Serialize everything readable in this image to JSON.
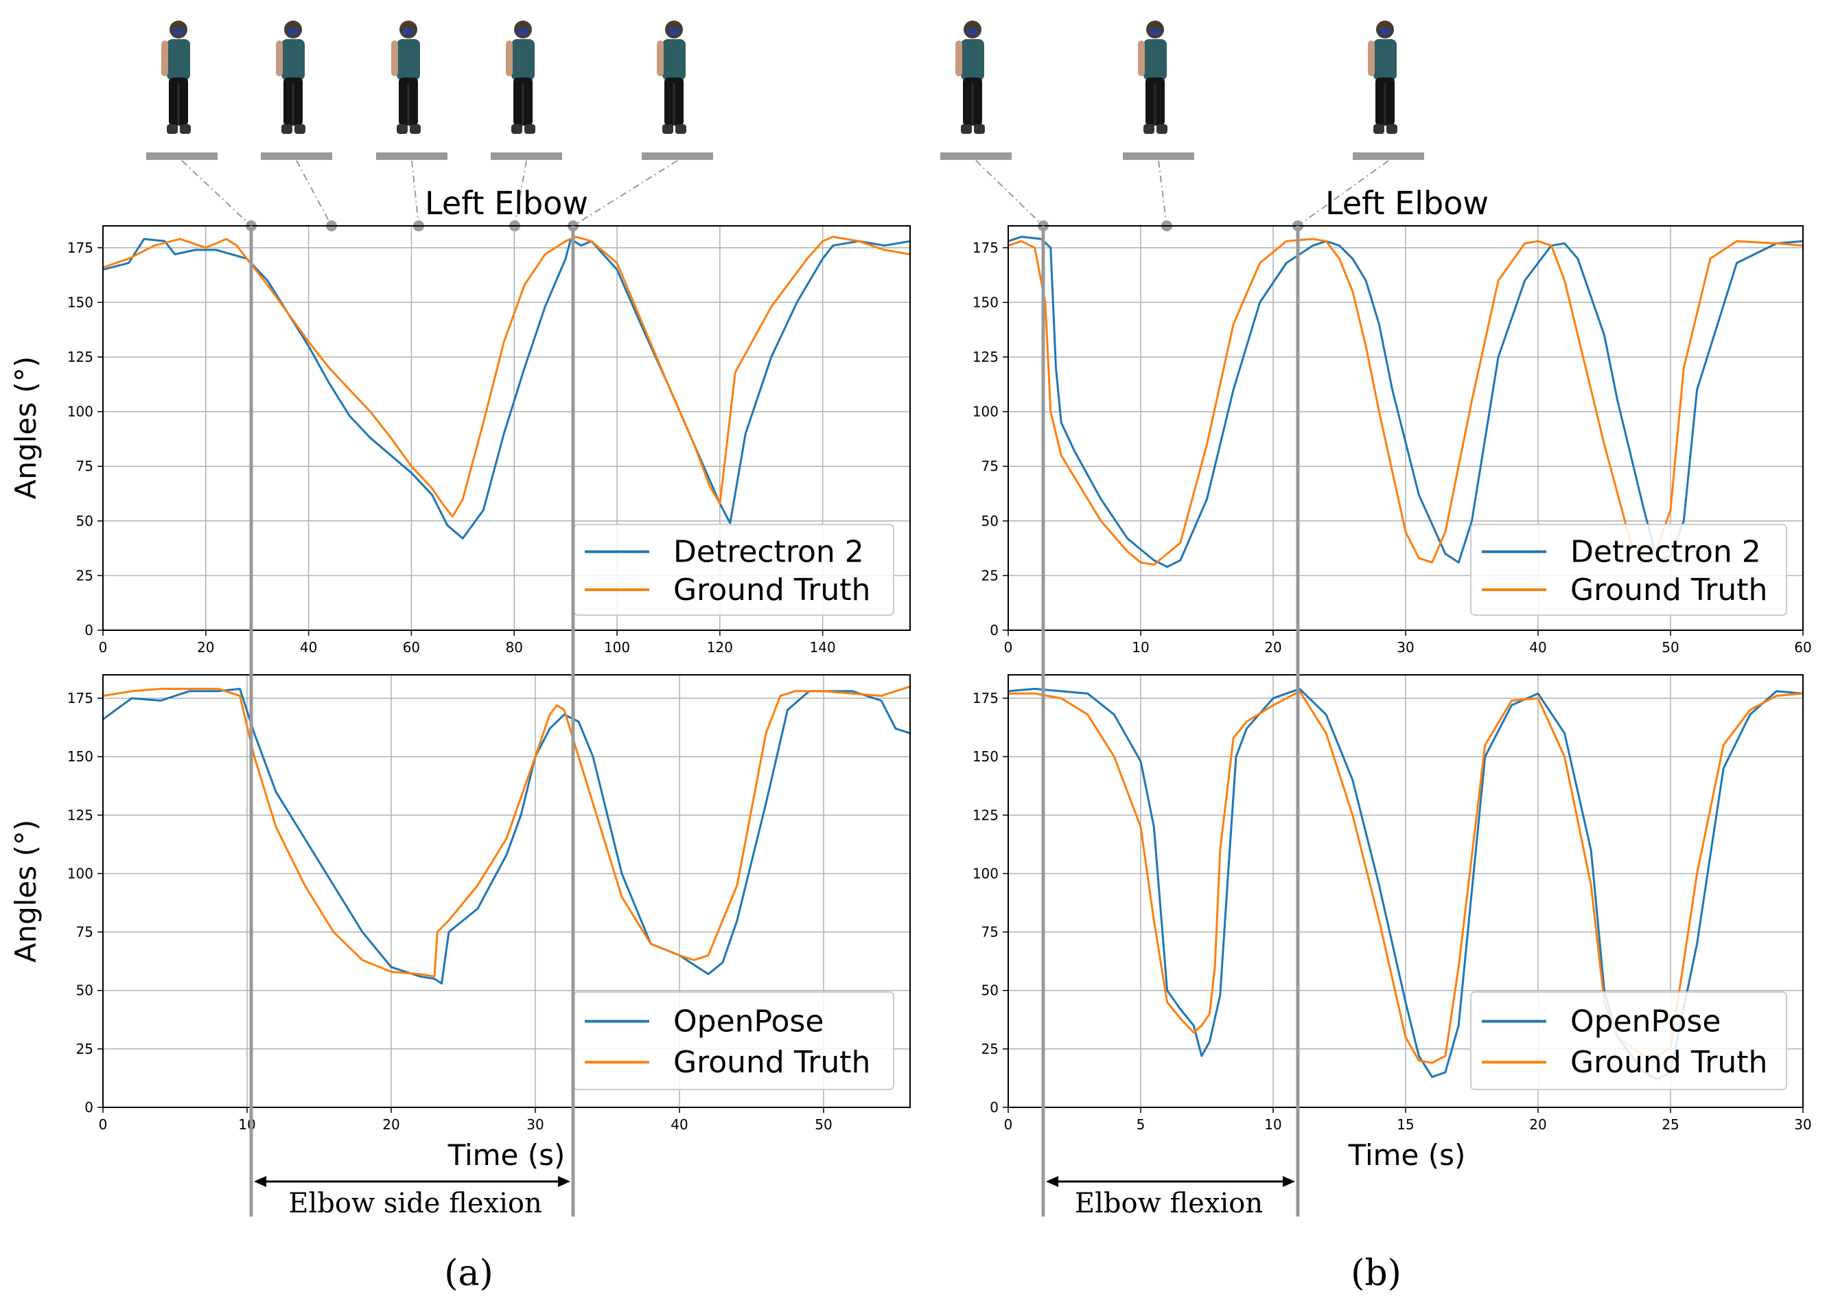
{
  "figure": {
    "left_title": "Left Elbow",
    "right_title": "Left Elbow",
    "left_span_label": "Elbow side flexion",
    "right_span_label": "Elbow flexion",
    "left_xlabel": "Time (s)",
    "right_xlabel": "Time (s)",
    "panel_a": "(a)",
    "panel_b": "(b)",
    "colors": {
      "blue": "#1f77b4",
      "orange": "#ff7f0e",
      "grid": "#b0b0b0",
      "marker": "#999999"
    },
    "icons": [
      "person-pose-icon"
    ]
  },
  "chart_data": [
    {
      "type": "line",
      "title": "Left Elbow",
      "xlabel": "",
      "ylabel": "Angles (°)",
      "xlim": [
        0,
        157
      ],
      "ylim": [
        0,
        185
      ],
      "xticks": [
        0,
        20,
        40,
        60,
        80,
        100,
        120,
        140
      ],
      "yticks": [
        0,
        25,
        50,
        75,
        100,
        125,
        150,
        175
      ],
      "grid": true,
      "legend": "lower-right",
      "series": [
        {
          "name": "Detrectron 2",
          "color": "#1f77b4",
          "x": [
            0,
            5,
            8,
            12,
            14,
            18,
            22,
            28,
            32,
            36,
            40,
            44,
            48,
            52,
            56,
            60,
            64,
            67,
            70,
            74,
            78,
            82,
            86,
            90,
            91,
            93,
            95,
            100,
            105,
            110,
            115,
            120,
            122,
            125,
            130,
            135,
            140,
            142,
            147,
            152,
            157
          ],
          "y": [
            165,
            168,
            179,
            178,
            172,
            174,
            174,
            170,
            160,
            145,
            130,
            113,
            98,
            88,
            80,
            72,
            62,
            48,
            42,
            55,
            90,
            120,
            148,
            170,
            179,
            176,
            178,
            165,
            138,
            112,
            85,
            58,
            49,
            90,
            125,
            150,
            170,
            176,
            178,
            176,
            178
          ]
        },
        {
          "name": "Ground Truth",
          "color": "#ff7f0e",
          "x": [
            0,
            5,
            10,
            15,
            20,
            24,
            26,
            28,
            32,
            36,
            40,
            44,
            48,
            52,
            56,
            60,
            64,
            66,
            68,
            70,
            74,
            78,
            82,
            86,
            90,
            92,
            95,
            100,
            105,
            110,
            115,
            118,
            120,
            123,
            130,
            137,
            140,
            142,
            147,
            152,
            157
          ],
          "y": [
            166,
            170,
            176,
            179,
            175,
            179,
            176,
            170,
            158,
            145,
            132,
            120,
            110,
            100,
            88,
            75,
            65,
            58,
            52,
            60,
            95,
            132,
            158,
            172,
            178,
            180,
            178,
            168,
            140,
            112,
            85,
            66,
            58,
            118,
            148,
            170,
            178,
            180,
            178,
            174,
            172
          ]
        }
      ]
    },
    {
      "type": "line",
      "title": "Left Elbow",
      "xlabel": "",
      "ylabel": "",
      "xlim": [
        0,
        60
      ],
      "ylim": [
        0,
        185
      ],
      "xticks": [
        0,
        10,
        20,
        30,
        40,
        50,
        60
      ],
      "yticks": [
        0,
        25,
        50,
        75,
        100,
        125,
        150,
        175
      ],
      "grid": true,
      "legend": "lower-right",
      "series": [
        {
          "name": "Detrectron 2",
          "color": "#1f77b4",
          "x": [
            0,
            1,
            2.5,
            3.2,
            3.6,
            4,
            5,
            7,
            9,
            11,
            12,
            13,
            15,
            17,
            19,
            21,
            23,
            24,
            25,
            26,
            27,
            28,
            29,
            31,
            33,
            34,
            35,
            37,
            39,
            41,
            42,
            43,
            45,
            46,
            48,
            49,
            50,
            51,
            52,
            55,
            58,
            60
          ],
          "y": [
            178,
            180,
            179,
            175,
            120,
            95,
            82,
            60,
            42,
            32,
            29,
            32,
            60,
            110,
            150,
            168,
            176,
            178,
            176,
            170,
            160,
            140,
            110,
            62,
            35,
            31,
            50,
            125,
            160,
            176,
            177,
            170,
            135,
            105,
            55,
            32,
            34,
            50,
            110,
            168,
            177,
            178
          ]
        },
        {
          "name": "Ground Truth",
          "color": "#ff7f0e",
          "x": [
            0,
            1,
            2,
            2.8,
            3.2,
            4,
            5,
            7,
            9,
            10,
            11,
            13,
            15,
            17,
            19,
            21,
            23,
            24,
            25,
            26,
            27,
            28,
            30,
            31,
            32,
            33,
            35,
            37,
            39,
            40,
            41,
            42,
            44,
            45,
            47,
            48,
            49,
            50,
            51,
            53,
            55,
            58,
            60
          ],
          "y": [
            176,
            178,
            175,
            150,
            100,
            80,
            70,
            50,
            36,
            31,
            30,
            40,
            85,
            140,
            168,
            178,
            179,
            178,
            170,
            155,
            130,
            100,
            45,
            33,
            31,
            45,
            105,
            160,
            177,
            178,
            176,
            160,
            110,
            85,
            40,
            32,
            38,
            55,
            120,
            170,
            178,
            177,
            176
          ]
        }
      ]
    },
    {
      "type": "line",
      "title": "",
      "xlabel": "",
      "ylabel": "Angles (°)",
      "xlim": [
        0,
        56
      ],
      "ylim": [
        0,
        185
      ],
      "xticks": [
        0,
        10,
        20,
        30,
        40,
        50
      ],
      "yticks": [
        0,
        25,
        50,
        75,
        100,
        125,
        150,
        175
      ],
      "grid": true,
      "legend": "lower-right",
      "series": [
        {
          "name": "OpenPose",
          "color": "#1f77b4",
          "x": [
            0,
            2,
            4,
            6,
            8,
            9.5,
            10.5,
            12,
            14,
            16,
            18,
            20,
            22,
            23,
            23.5,
            24,
            26,
            28,
            29,
            30,
            31,
            32,
            33,
            34,
            36,
            38,
            40,
            42,
            43,
            44,
            46,
            47.5,
            49,
            52,
            54,
            55,
            56
          ],
          "y": [
            166,
            175,
            174,
            178,
            178,
            179,
            160,
            135,
            115,
            95,
            75,
            60,
            56,
            55,
            53,
            75,
            85,
            108,
            125,
            150,
            162,
            168,
            165,
            150,
            100,
            70,
            65,
            57,
            62,
            80,
            130,
            170,
            178,
            178,
            174,
            162,
            160
          ]
        },
        {
          "name": "Ground Truth",
          "color": "#ff7f0e",
          "x": [
            0,
            2,
            4,
            6,
            8,
            9.5,
            10.5,
            12,
            14,
            16,
            18,
            20,
            22,
            23,
            23.2,
            24,
            26,
            28,
            30,
            31,
            31.5,
            32,
            33,
            34,
            36,
            38,
            40,
            41,
            42,
            44,
            46,
            47,
            48,
            50,
            52,
            54,
            56
          ],
          "y": [
            176,
            178,
            179,
            179,
            179,
            176,
            150,
            120,
            95,
            75,
            63,
            58,
            57,
            56,
            75,
            80,
            95,
            115,
            150,
            168,
            172,
            170,
            150,
            130,
            90,
            70,
            65,
            63,
            65,
            95,
            160,
            176,
            178,
            178,
            177,
            176,
            180
          ]
        }
      ]
    },
    {
      "type": "line",
      "title": "",
      "xlabel": "",
      "ylabel": "",
      "xlim": [
        0,
        30
      ],
      "ylim": [
        0,
        185
      ],
      "xticks": [
        0,
        5,
        10,
        15,
        20,
        25,
        30
      ],
      "yticks": [
        0,
        25,
        50,
        75,
        100,
        125,
        150,
        175
      ],
      "grid": true,
      "legend": "lower-right",
      "series": [
        {
          "name": "OpenPose",
          "color": "#1f77b4",
          "x": [
            0,
            1,
            2,
            3,
            4,
            5,
            5.5,
            6,
            6.5,
            7,
            7.3,
            7.6,
            8,
            8.3,
            8.6,
            9,
            10,
            11,
            12,
            13,
            14,
            15,
            15.5,
            16,
            16.5,
            17,
            18,
            19,
            20,
            21,
            22,
            22.5,
            23,
            24,
            24.5,
            25,
            26,
            27,
            28,
            29,
            30
          ],
          "y": [
            178,
            179,
            178,
            177,
            168,
            148,
            120,
            50,
            42,
            35,
            22,
            28,
            48,
            100,
            150,
            162,
            175,
            179,
            168,
            140,
            95,
            45,
            22,
            13,
            15,
            35,
            150,
            172,
            177,
            160,
            110,
            50,
            30,
            15,
            12,
            15,
            70,
            145,
            168,
            178,
            177
          ]
        },
        {
          "name": "Ground Truth",
          "color": "#ff7f0e",
          "x": [
            0,
            1,
            2,
            3,
            4,
            5,
            5.5,
            6,
            6.5,
            7,
            7.3,
            7.6,
            7.8,
            8,
            8.5,
            9,
            10,
            11,
            12,
            13,
            14,
            15,
            15.5,
            16,
            16.5,
            17,
            18,
            19,
            20,
            21,
            22,
            22.5,
            23,
            24,
            24.5,
            25,
            26,
            27,
            28,
            29,
            30
          ],
          "y": [
            177,
            177,
            175,
            168,
            150,
            120,
            80,
            45,
            38,
            32,
            35,
            40,
            60,
            110,
            158,
            165,
            172,
            178,
            160,
            125,
            80,
            30,
            20,
            19,
            22,
            60,
            155,
            174,
            175,
            150,
            95,
            45,
            30,
            22,
            22,
            25,
            100,
            155,
            170,
            176,
            177
          ]
        }
      ]
    }
  ]
}
